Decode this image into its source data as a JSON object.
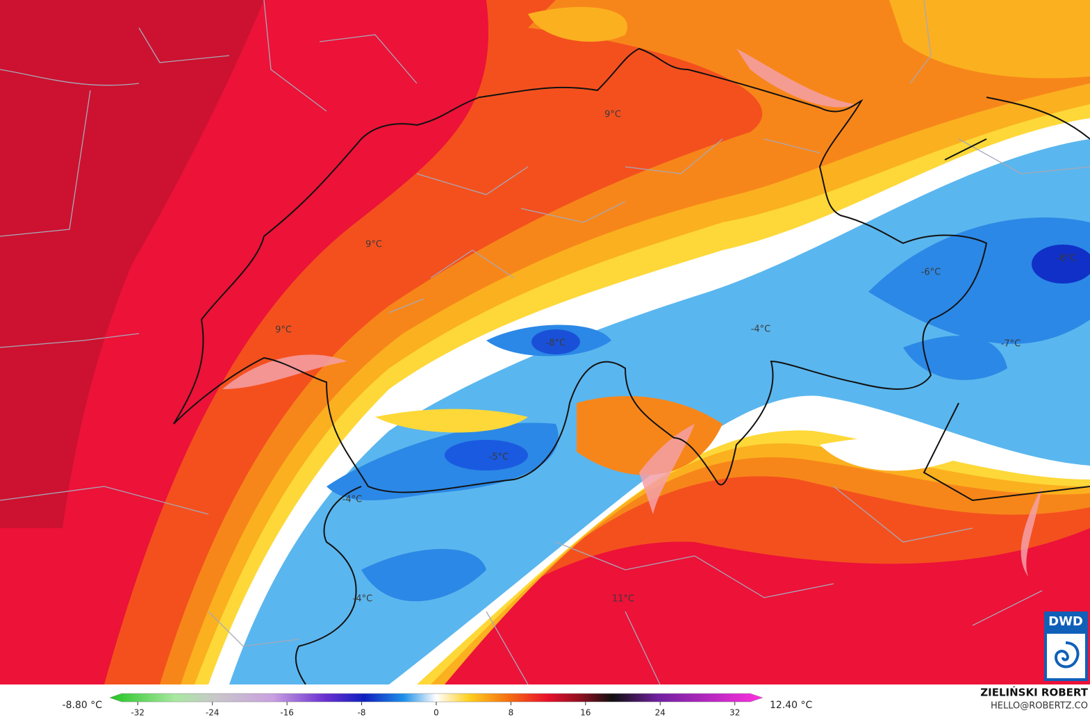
{
  "map": {
    "labels": [
      "9°C",
      "9°C",
      "9°C",
      "-8°C",
      "-8°C",
      "-6°C",
      "-4°C",
      "-7°C",
      "-5°C",
      "-4°C",
      "-4°C",
      "11°C"
    ]
  },
  "colorbar": {
    "min_label": "-8.80 °C",
    "max_label": "12.40 °C",
    "lim": [
      -35,
      35
    ],
    "ticks": [
      -32,
      -24,
      -16,
      -8,
      0,
      8,
      16,
      24,
      32
    ]
  },
  "credit": {
    "author": "ZIELIŃSKI ROBERT",
    "contact": "HELLO@ROBERTZ.CO",
    "logo": "DWD"
  }
}
